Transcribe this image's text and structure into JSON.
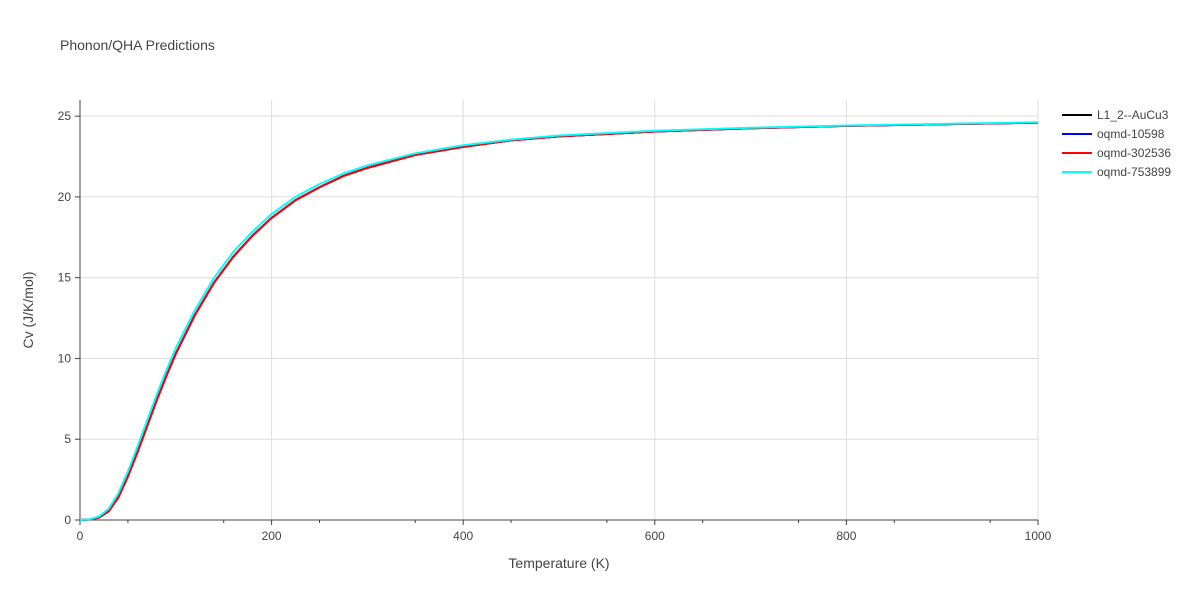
{
  "chart_data": {
    "type": "line",
    "title": "Phonon/QHA Predictions",
    "xlabel": "Temperature (K)",
    "ylabel": "Cv (J/K/mol)",
    "xlim": [
      0,
      1000
    ],
    "ylim": [
      0,
      26
    ],
    "xticks": [
      "0",
      "200",
      "400",
      "600",
      "800",
      "1000"
    ],
    "yticks": [
      "0",
      "5",
      "10",
      "15",
      "20",
      "25"
    ],
    "grid": true,
    "legend_position": "top-right",
    "x": [
      0,
      10,
      20,
      30,
      40,
      50,
      60,
      70,
      80,
      90,
      100,
      120,
      140,
      160,
      180,
      200,
      225,
      250,
      275,
      300,
      350,
      400,
      450,
      500,
      600,
      700,
      800,
      900,
      1000
    ],
    "series": [
      {
        "name": "L1_2--AuCu3",
        "color": "#000000",
        "values": [
          0,
          0.03,
          0.15,
          0.55,
          1.4,
          2.7,
          4.2,
          5.8,
          7.4,
          8.9,
          10.3,
          12.7,
          14.7,
          16.3,
          17.6,
          18.7,
          19.8,
          20.6,
          21.3,
          21.8,
          22.6,
          23.1,
          23.5,
          23.75,
          24.05,
          24.25,
          24.4,
          24.5,
          24.6
        ]
      },
      {
        "name": "oqmd-10598",
        "color": "#0000ff",
        "values": [
          0,
          0.03,
          0.15,
          0.55,
          1.4,
          2.7,
          4.2,
          5.8,
          7.4,
          8.9,
          10.3,
          12.7,
          14.7,
          16.3,
          17.6,
          18.7,
          19.8,
          20.6,
          21.3,
          21.8,
          22.6,
          23.1,
          23.5,
          23.75,
          24.05,
          24.25,
          24.4,
          24.5,
          24.6
        ]
      },
      {
        "name": "oqmd-302536",
        "color": "#ff0000",
        "values": [
          0,
          0.03,
          0.15,
          0.55,
          1.4,
          2.7,
          4.2,
          5.8,
          7.4,
          8.9,
          10.3,
          12.7,
          14.7,
          16.3,
          17.6,
          18.7,
          19.8,
          20.6,
          21.3,
          21.8,
          22.6,
          23.1,
          23.5,
          23.75,
          24.05,
          24.25,
          24.4,
          24.5,
          24.6
        ]
      },
      {
        "name": "oqmd-753899",
        "color": "#00ffff",
        "values": [
          0,
          0.04,
          0.22,
          0.7,
          1.65,
          3.0,
          4.55,
          6.15,
          7.75,
          9.25,
          10.65,
          13.0,
          15.0,
          16.6,
          17.85,
          18.95,
          20.0,
          20.8,
          21.45,
          21.95,
          22.7,
          23.2,
          23.55,
          23.8,
          24.1,
          24.28,
          24.42,
          24.52,
          24.62
        ]
      }
    ]
  }
}
